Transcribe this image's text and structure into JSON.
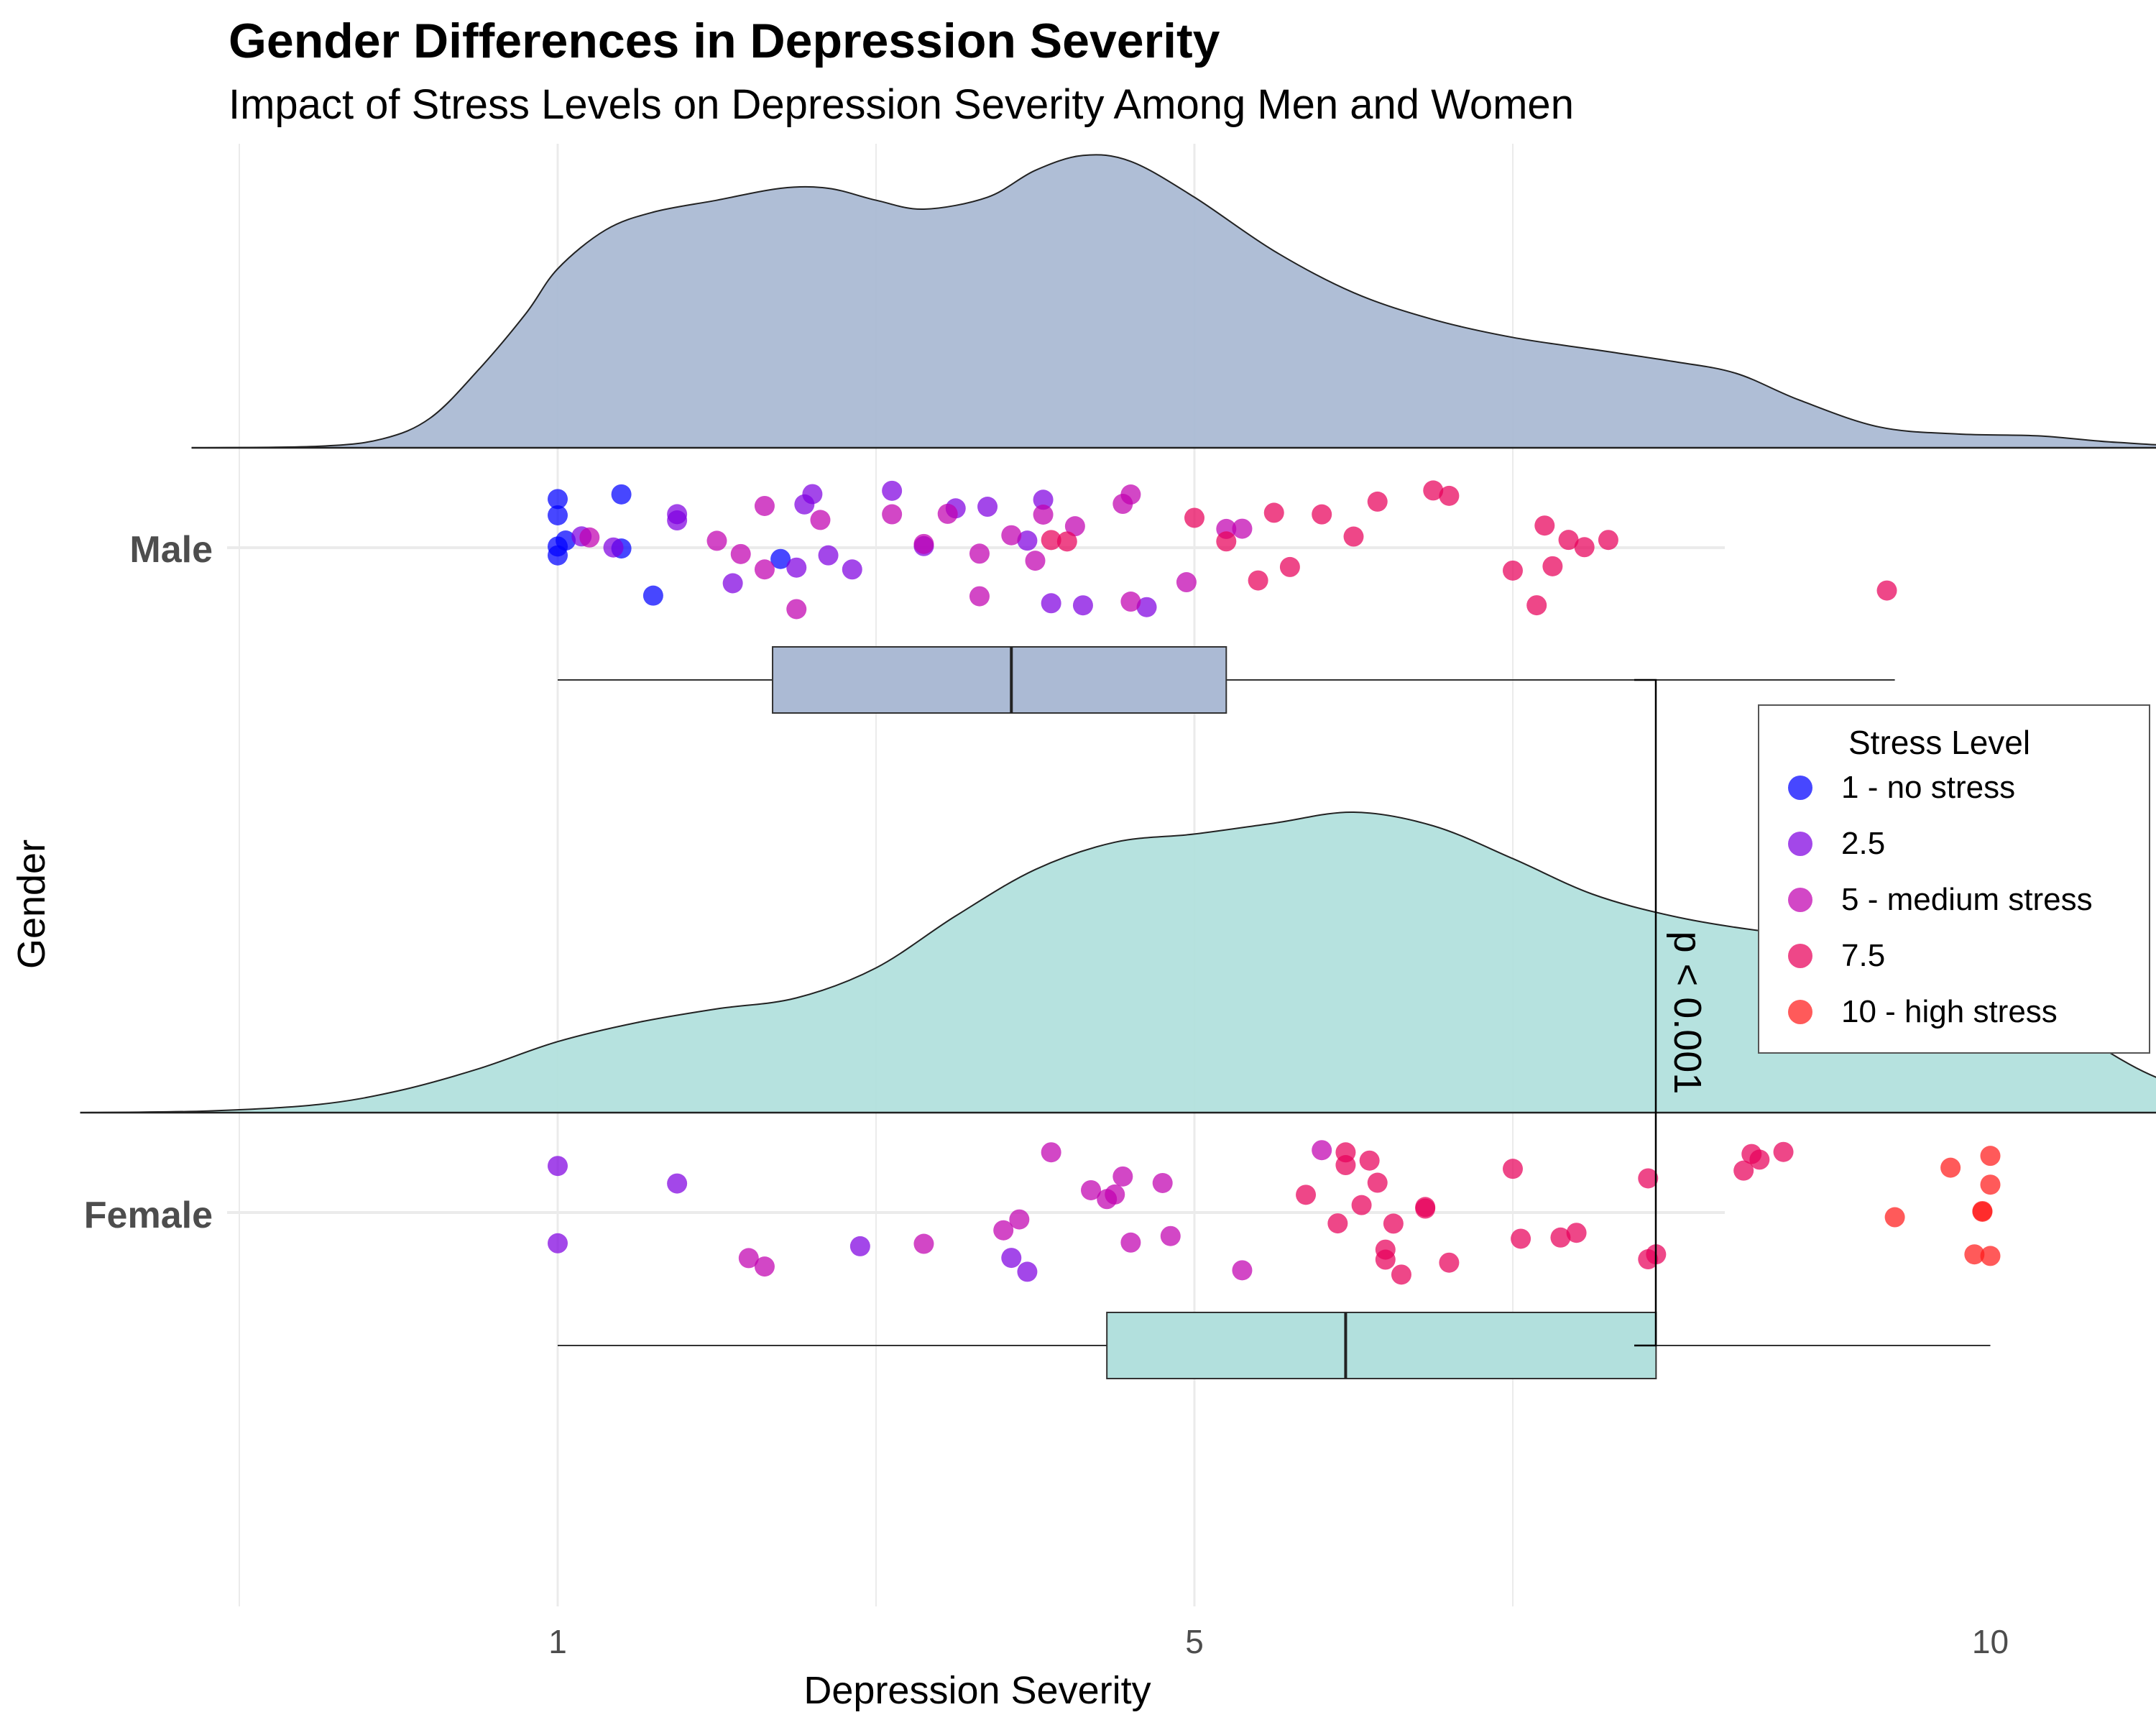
{
  "title": "Gender Differences in Depression Severity",
  "subtitle": "Impact of Stress Levels on Depression Severity Among Men and Women",
  "chart_data": {
    "type": "raincloud",
    "xlabel": "Depression Severity",
    "ylabel": "Gender",
    "xlim": [
      -1,
      14
    ],
    "x_ticks": [
      "1",
      "5",
      "10"
    ],
    "x_tick_values": [
      1,
      5,
      10
    ],
    "categories": [
      "Male",
      "Female"
    ],
    "annotation": "p < 0.001",
    "grid": true,
    "legend": {
      "title": "Stress Level",
      "placement": "right",
      "items": [
        {
          "label": "1 - no stress",
          "color": "#0000ff"
        },
        {
          "label": "2.5",
          "color": "#8000e0"
        },
        {
          "label": "5 - medium stress",
          "color": "#c000b0"
        },
        {
          "label": "7.5",
          "color": "#e8005a"
        },
        {
          "label": "10 - high stress",
          "color": "#ff1a1a"
        }
      ]
    },
    "series": [
      {
        "name": "Male",
        "fill": "#abbad4",
        "density_range": [
          -1.3,
          13.3
        ],
        "density_curve": [
          [
            -1.3,
            0
          ],
          [
            -0.5,
            0.005
          ],
          [
            -0.1,
            0.03
          ],
          [
            0.2,
            0.1
          ],
          [
            0.5,
            0.26
          ],
          [
            0.8,
            0.45
          ],
          [
            1.0,
            0.6
          ],
          [
            1.3,
            0.73
          ],
          [
            1.6,
            0.79
          ],
          [
            2.0,
            0.83
          ],
          [
            2.4,
            0.87
          ],
          [
            2.7,
            0.87
          ],
          [
            3.0,
            0.83
          ],
          [
            3.3,
            0.8
          ],
          [
            3.7,
            0.84
          ],
          [
            4.0,
            0.93
          ],
          [
            4.3,
            0.98
          ],
          [
            4.6,
            0.96
          ],
          [
            5.0,
            0.84
          ],
          [
            5.5,
            0.66
          ],
          [
            6.0,
            0.52
          ],
          [
            6.5,
            0.43
          ],
          [
            7.0,
            0.37
          ],
          [
            7.5,
            0.33
          ],
          [
            8.0,
            0.29
          ],
          [
            8.4,
            0.25
          ],
          [
            8.8,
            0.16
          ],
          [
            9.3,
            0.07
          ],
          [
            9.8,
            0.046
          ],
          [
            10.3,
            0.04
          ],
          [
            10.8,
            0.018
          ],
          [
            11.5,
            0.003
          ],
          [
            13.3,
            0
          ]
        ],
        "box": {
          "min": 1,
          "q1": 2.35,
          "median": 3.85,
          "q3": 5.2,
          "max": 9.4
        },
        "points": [
          [
            1.0,
            1
          ],
          [
            1.0,
            1
          ],
          [
            1.0,
            1
          ],
          [
            1.0,
            1
          ],
          [
            1.05,
            1
          ],
          [
            1.4,
            1
          ],
          [
            1.4,
            1
          ],
          [
            1.6,
            1
          ],
          [
            2.4,
            1
          ],
          [
            1.15,
            2.5
          ],
          [
            1.75,
            2.5
          ],
          [
            2.1,
            2.5
          ],
          [
            2.5,
            2.5
          ],
          [
            2.6,
            2.5
          ],
          [
            1.35,
            2.5
          ],
          [
            1.75,
            2.5
          ],
          [
            2.85,
            2.5
          ],
          [
            2.55,
            2.5
          ],
          [
            2.7,
            2.5
          ],
          [
            3.3,
            2.5
          ],
          [
            3.7,
            2.5
          ],
          [
            3.1,
            2.5
          ],
          [
            4.1,
            2.5
          ],
          [
            4.7,
            2.5
          ],
          [
            4.05,
            2.5
          ],
          [
            3.95,
            2.5
          ],
          [
            4.3,
            2.5
          ],
          [
            3.5,
            2.5
          ],
          [
            1.2,
            5
          ],
          [
            2.15,
            5
          ],
          [
            2.3,
            5
          ],
          [
            2.65,
            5
          ],
          [
            2.3,
            5
          ],
          [
            2.5,
            5
          ],
          [
            2.0,
            5
          ],
          [
            3.45,
            5
          ],
          [
            3.65,
            5
          ],
          [
            4.25,
            5
          ],
          [
            4.55,
            5
          ],
          [
            4.95,
            5
          ],
          [
            5.2,
            5
          ],
          [
            5.3,
            5
          ],
          [
            4.6,
            5
          ],
          [
            4.6,
            5
          ],
          [
            4.05,
            5
          ],
          [
            3.65,
            5
          ],
          [
            3.3,
            5
          ],
          [
            3.1,
            5
          ],
          [
            4.0,
            5
          ],
          [
            3.85,
            5
          ],
          [
            5.4,
            7.5
          ],
          [
            5.6,
            7.5
          ],
          [
            6.15,
            7.5
          ],
          [
            5.5,
            7.5
          ],
          [
            5.2,
            7.5
          ],
          [
            6.6,
            7.5
          ],
          [
            6.5,
            7.5
          ],
          [
            6.0,
            7.5
          ],
          [
            7.0,
            7.5
          ],
          [
            7.25,
            7.5
          ],
          [
            7.15,
            7.5
          ],
          [
            7.2,
            7.5
          ],
          [
            7.35,
            7.5
          ],
          [
            7.45,
            7.5
          ],
          [
            7.6,
            7.5
          ],
          [
            9.35,
            7.5
          ],
          [
            4.2,
            7.5
          ],
          [
            4.1,
            7.5
          ],
          [
            5.0,
            7.5
          ],
          [
            5.8,
            7.5
          ]
        ]
      },
      {
        "name": "Female",
        "fill": "#b2e0dd",
        "density_range": [
          -2.0,
          13.5
        ],
        "density_curve": [
          [
            -2.0,
            0
          ],
          [
            -1.2,
            0.006
          ],
          [
            -0.5,
            0.03
          ],
          [
            0.0,
            0.08
          ],
          [
            0.5,
            0.16
          ],
          [
            1.0,
            0.26
          ],
          [
            1.5,
            0.33
          ],
          [
            2.0,
            0.38
          ],
          [
            2.5,
            0.42
          ],
          [
            3.0,
            0.53
          ],
          [
            3.5,
            0.72
          ],
          [
            4.0,
            0.89
          ],
          [
            4.5,
            0.99
          ],
          [
            5.0,
            1.02
          ],
          [
            5.5,
            1.06
          ],
          [
            6.0,
            1.1
          ],
          [
            6.5,
            1.05
          ],
          [
            7.0,
            0.93
          ],
          [
            7.5,
            0.8
          ],
          [
            8.0,
            0.72
          ],
          [
            8.5,
            0.67
          ],
          [
            9.0,
            0.64
          ],
          [
            9.5,
            0.6
          ],
          [
            10.0,
            0.49
          ],
          [
            10.5,
            0.31
          ],
          [
            11.0,
            0.14
          ],
          [
            11.5,
            0.05
          ],
          [
            12.2,
            0.008
          ],
          [
            13.5,
            0
          ]
        ],
        "box": {
          "min": 1,
          "q1": 4.45,
          "median": 5.95,
          "q3": 7.9,
          "max": 10
        },
        "points": [
          [
            1.0,
            2.5
          ],
          [
            1.0,
            2.5
          ],
          [
            1.75,
            2.5
          ],
          [
            2.9,
            2.5
          ],
          [
            3.85,
            2.5
          ],
          [
            3.95,
            2.5
          ],
          [
            2.3,
            5
          ],
          [
            2.2,
            5
          ],
          [
            3.3,
            5
          ],
          [
            3.8,
            5
          ],
          [
            3.9,
            5
          ],
          [
            4.1,
            5
          ],
          [
            4.35,
            5
          ],
          [
            4.5,
            5
          ],
          [
            4.55,
            5
          ],
          [
            4.45,
            5
          ],
          [
            4.85,
            5
          ],
          [
            4.6,
            5
          ],
          [
            4.8,
            5
          ],
          [
            5.3,
            5
          ],
          [
            5.8,
            5
          ],
          [
            5.7,
            7.5
          ],
          [
            5.9,
            7.5
          ],
          [
            6.05,
            7.5
          ],
          [
            6.1,
            7.5
          ],
          [
            6.3,
            7.5
          ],
          [
            6.45,
            7.5
          ],
          [
            6.2,
            7.5
          ],
          [
            6.25,
            7.5
          ],
          [
            6.45,
            7.5
          ],
          [
            5.95,
            7.5
          ],
          [
            6.2,
            7.5
          ],
          [
            6.6,
            7.5
          ],
          [
            6.15,
            7.5
          ],
          [
            5.95,
            7.5
          ],
          [
            7.0,
            7.5
          ],
          [
            7.05,
            7.5
          ],
          [
            7.3,
            7.5
          ],
          [
            7.4,
            7.5
          ],
          [
            7.85,
            7.5
          ],
          [
            7.85,
            7.5
          ],
          [
            7.9,
            7.5
          ],
          [
            8.45,
            7.5
          ],
          [
            8.5,
            7.5
          ],
          [
            8.55,
            7.5
          ],
          [
            8.7,
            7.5
          ],
          [
            9.4,
            10
          ],
          [
            9.9,
            10
          ],
          [
            10.0,
            10
          ],
          [
            9.75,
            10
          ],
          [
            9.95,
            10
          ],
          [
            10.0,
            10
          ],
          [
            10.0,
            10
          ],
          [
            9.95,
            10
          ]
        ]
      }
    ]
  }
}
